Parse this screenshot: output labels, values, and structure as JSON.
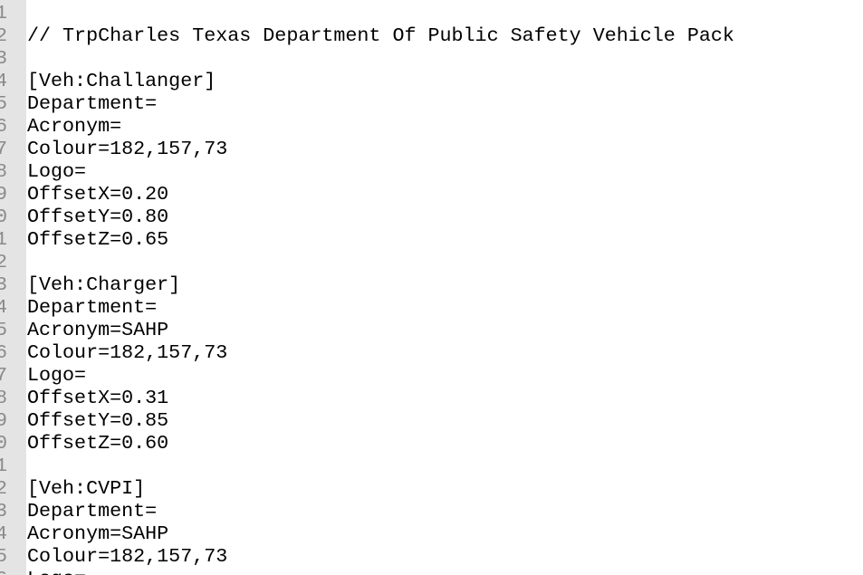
{
  "editor": {
    "lines": [
      "",
      "// TrpCharles Texas Department Of Public Safety Vehicle Pack",
      "",
      "[Veh:Challanger]",
      "Department=",
      "Acronym=",
      "Colour=182,157,73",
      "Logo=",
      "OffsetX=0.20",
      "OffsetY=0.80",
      "OffsetZ=0.65",
      "",
      "[Veh:Charger]",
      "Department=",
      "Acronym=SAHP",
      "Colour=182,157,73",
      "Logo=",
      "OffsetX=0.31",
      "OffsetY=0.85",
      "OffsetZ=0.60",
      "",
      "[Veh:CVPI]",
      "Department=",
      "Acronym=SAHP",
      "Colour=182,157,73",
      "Logo="
    ]
  }
}
